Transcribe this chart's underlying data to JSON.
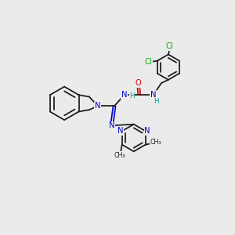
{
  "bg_color": "#ebebeb",
  "bond_color": "#1a1a1a",
  "atom_colors": {
    "N": "#0000cc",
    "O": "#cc0000",
    "Cl": "#00aa00",
    "H": "#009999"
  },
  "font_size": 7.2,
  "fig_size": [
    3.0,
    3.0
  ],
  "dpi": 100,
  "lw": 1.25
}
